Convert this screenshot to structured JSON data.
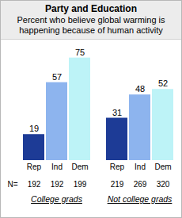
{
  "chart_data": {
    "type": "bar",
    "title": "Party and Education",
    "subtitle": "Percent who believe global warming is happening because of human activity",
    "categories": [
      "College grads",
      "Not college grads"
    ],
    "series": [
      {
        "name": "Rep",
        "color": "#1d3b96",
        "values": [
          19,
          31
        ],
        "sample_sizes": [
          192,
          219
        ]
      },
      {
        "name": "Ind",
        "color": "#8db4ee",
        "values": [
          57,
          48
        ],
        "sample_sizes": [
          192,
          269
        ]
      },
      {
        "name": "Dem",
        "color": "#bdf3f7",
        "values": [
          75,
          52
        ],
        "sample_sizes": [
          199,
          320
        ]
      }
    ],
    "sample_size_label": "N=",
    "ylim": [
      0,
      80
    ],
    "data_labels": true,
    "tick_labels": "x"
  }
}
